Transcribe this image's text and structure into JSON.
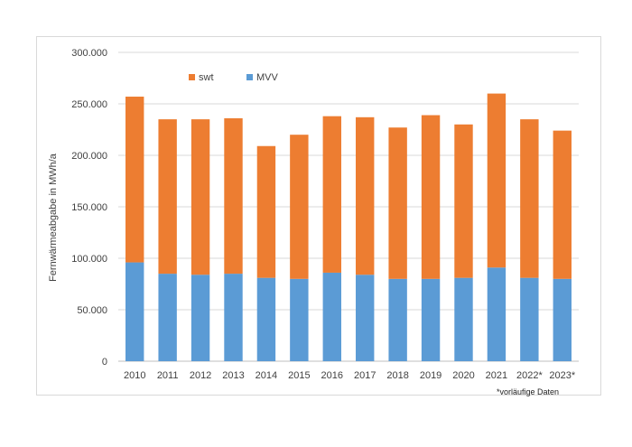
{
  "chart_data": {
    "type": "bar",
    "stacked": true,
    "categories": [
      "2010",
      "2011",
      "2012",
      "2013",
      "2014",
      "2015",
      "2016",
      "2017",
      "2018",
      "2019",
      "2020",
      "2021",
      "2022*",
      "2023*"
    ],
    "series": [
      {
        "name": "MVV",
        "color": "#5b9bd5",
        "values": [
          96000,
          85000,
          84000,
          85000,
          81000,
          80000,
          86000,
          84000,
          80000,
          80000,
          81000,
          91000,
          81000,
          80000
        ]
      },
      {
        "name": "swt",
        "color": "#ed7d31",
        "values": [
          161000,
          150000,
          151000,
          151000,
          128000,
          140000,
          152000,
          153000,
          147000,
          159000,
          149000,
          169000,
          154000,
          144000
        ]
      }
    ],
    "legend_order": [
      "swt",
      "MVV"
    ],
    "title": "",
    "xlabel": "",
    "ylabel": "Fernwärmeabgabe in MWh/a",
    "ylim": [
      0,
      300000
    ],
    "yticks": [
      0,
      50000,
      100000,
      150000,
      200000,
      250000,
      300000
    ],
    "ytick_labels": [
      "0",
      "50.000",
      "100.000",
      "150.000",
      "200.000",
      "250.000",
      "300.000"
    ],
    "grid": true,
    "legend_position": "top-left",
    "footnote": "*vorläufige Daten"
  }
}
